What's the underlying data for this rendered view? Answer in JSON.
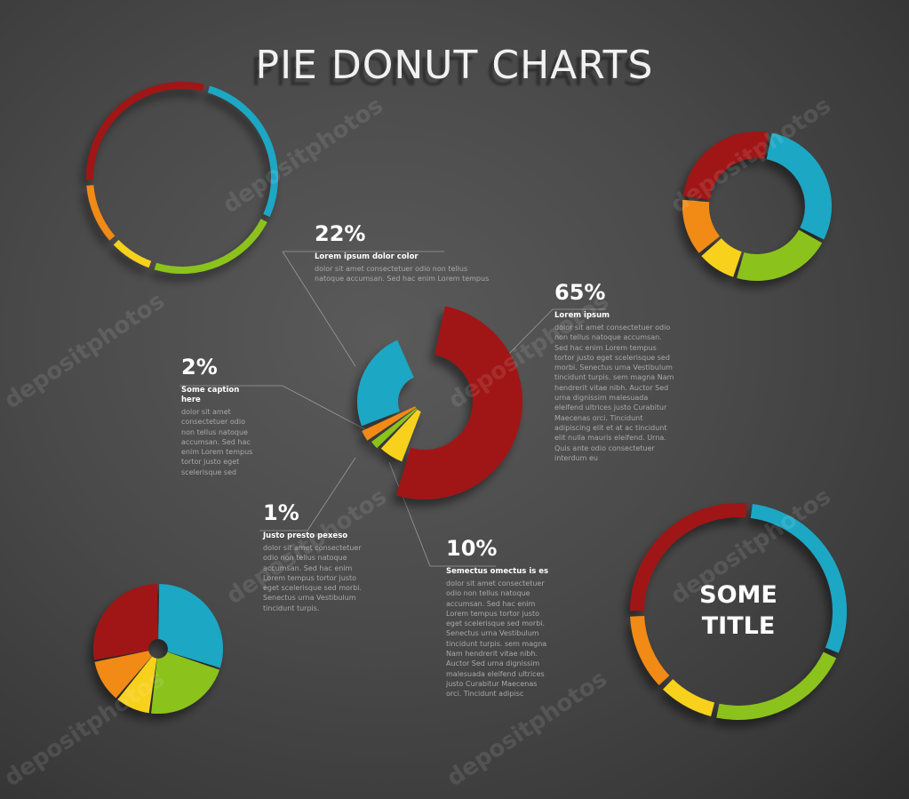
{
  "title": "PIE DONUT CHARTS",
  "watermark": "depositphotos",
  "colors": {
    "red": "#a01414",
    "blue": "#1ea7c4",
    "green": "#8cc21f",
    "orange": "#f28a12",
    "yellow": "#f7d11b",
    "lines": "#9a9a9a",
    "text_body": "#a9a9a9"
  },
  "chart_data": [
    {
      "type": "pie",
      "variant": "exploded-donut",
      "title": "",
      "slices": [
        {
          "value": 65,
          "label": "65%",
          "caption": "Lorem ipsum",
          "color": "#a01414",
          "text": "dolor sit amet consectetuer odio non tellus natoque accumsan. Sed hac enim Lorem tempus tortor justo eget scelerisque sed morbi. Senectus urna Vestibulum tincidunt turpis. sem magna Nam hendrerit vitae nibh. Auctor Sed urna dignissim malesuada eleifend ultrices justo Curabitur Maecenas orci. Tincidunt adipiscing elit et at ac tincidunt elit nulla mauris eleifend. Urna. Quis ante odio consectetuer interdum eu"
        },
        {
          "value": 10,
          "label": "10%",
          "caption": "Semectus omectus is es",
          "color": "#f7d11b",
          "text": "dolor sit amet consectetuer odio non tellus natoque accumsan. Sed hac enim Lorem tempus tortor justo eget scelerisque sed morbi. Senectus urna Vestibulum tincidunt turpis. sem magna Nam hendrerit vitae nibh. Auctor Sed urna dignissim malesuada eleifend ultrices justo Curabitur Maecenas orci. Tincidunt adipisc"
        },
        {
          "value": 1,
          "label": "1%",
          "caption": "Justo presto pexeso",
          "color": "#8cc21f",
          "text": "dolor sit amet consectetuer odio non tellus natoque accumsan. Sed hac enim Lorem tempus tortor justo eget scelerisque sed morbi. Senectus urna Vestibulum tincidunt turpis."
        },
        {
          "value": 2,
          "label": "2%",
          "caption": "Some caption here",
          "color": "#f28a12",
          "text": "dolor sit amet consectetuer odio non tellus natoque accumsan. Sed hac enim Lorem tempus tortor justo eget scelerisque sed"
        },
        {
          "value": 22,
          "label": "22%",
          "caption": "Lorem ipsum dolor color",
          "color": "#1ea7c4",
          "text": "dolor sit amet consectetuer odio non tellus natoque accumsan. Sed hac enim Lorem tempus"
        }
      ]
    },
    {
      "type": "pie",
      "variant": "thin-ring",
      "title": "",
      "slices": [
        {
          "value": 28,
          "color": "#1ea7c4"
        },
        {
          "value": 23,
          "color": "#8cc21f"
        },
        {
          "value": 8,
          "color": "#f7d11b"
        },
        {
          "value": 11,
          "color": "#f28a12"
        },
        {
          "value": 30,
          "color": "#a01414"
        }
      ]
    },
    {
      "type": "pie",
      "variant": "thick-ring",
      "title": "",
      "slices": [
        {
          "value": 30,
          "color": "#1ea7c4"
        },
        {
          "value": 22,
          "color": "#8cc21f"
        },
        {
          "value": 9,
          "color": "#f7d11b"
        },
        {
          "value": 13,
          "color": "#f28a12"
        },
        {
          "value": 26,
          "color": "#a01414"
        }
      ]
    },
    {
      "type": "pie",
      "variant": "pie-small-hole",
      "title": "",
      "slices": [
        {
          "value": 30,
          "color": "#1ea7c4"
        },
        {
          "value": 22,
          "color": "#8cc21f"
        },
        {
          "value": 9,
          "color": "#f7d11b"
        },
        {
          "value": 11,
          "color": "#f28a12"
        },
        {
          "value": 28,
          "color": "#a01414"
        }
      ]
    },
    {
      "type": "pie",
      "variant": "titled-ring",
      "title": "SOME\nTITLE",
      "slices": [
        {
          "value": 30,
          "color": "#1ea7c4"
        },
        {
          "value": 22,
          "color": "#8cc21f"
        },
        {
          "value": 9,
          "color": "#f7d11b"
        },
        {
          "value": 12,
          "color": "#f28a12"
        },
        {
          "value": 27,
          "color": "#a01414"
        }
      ]
    }
  ]
}
